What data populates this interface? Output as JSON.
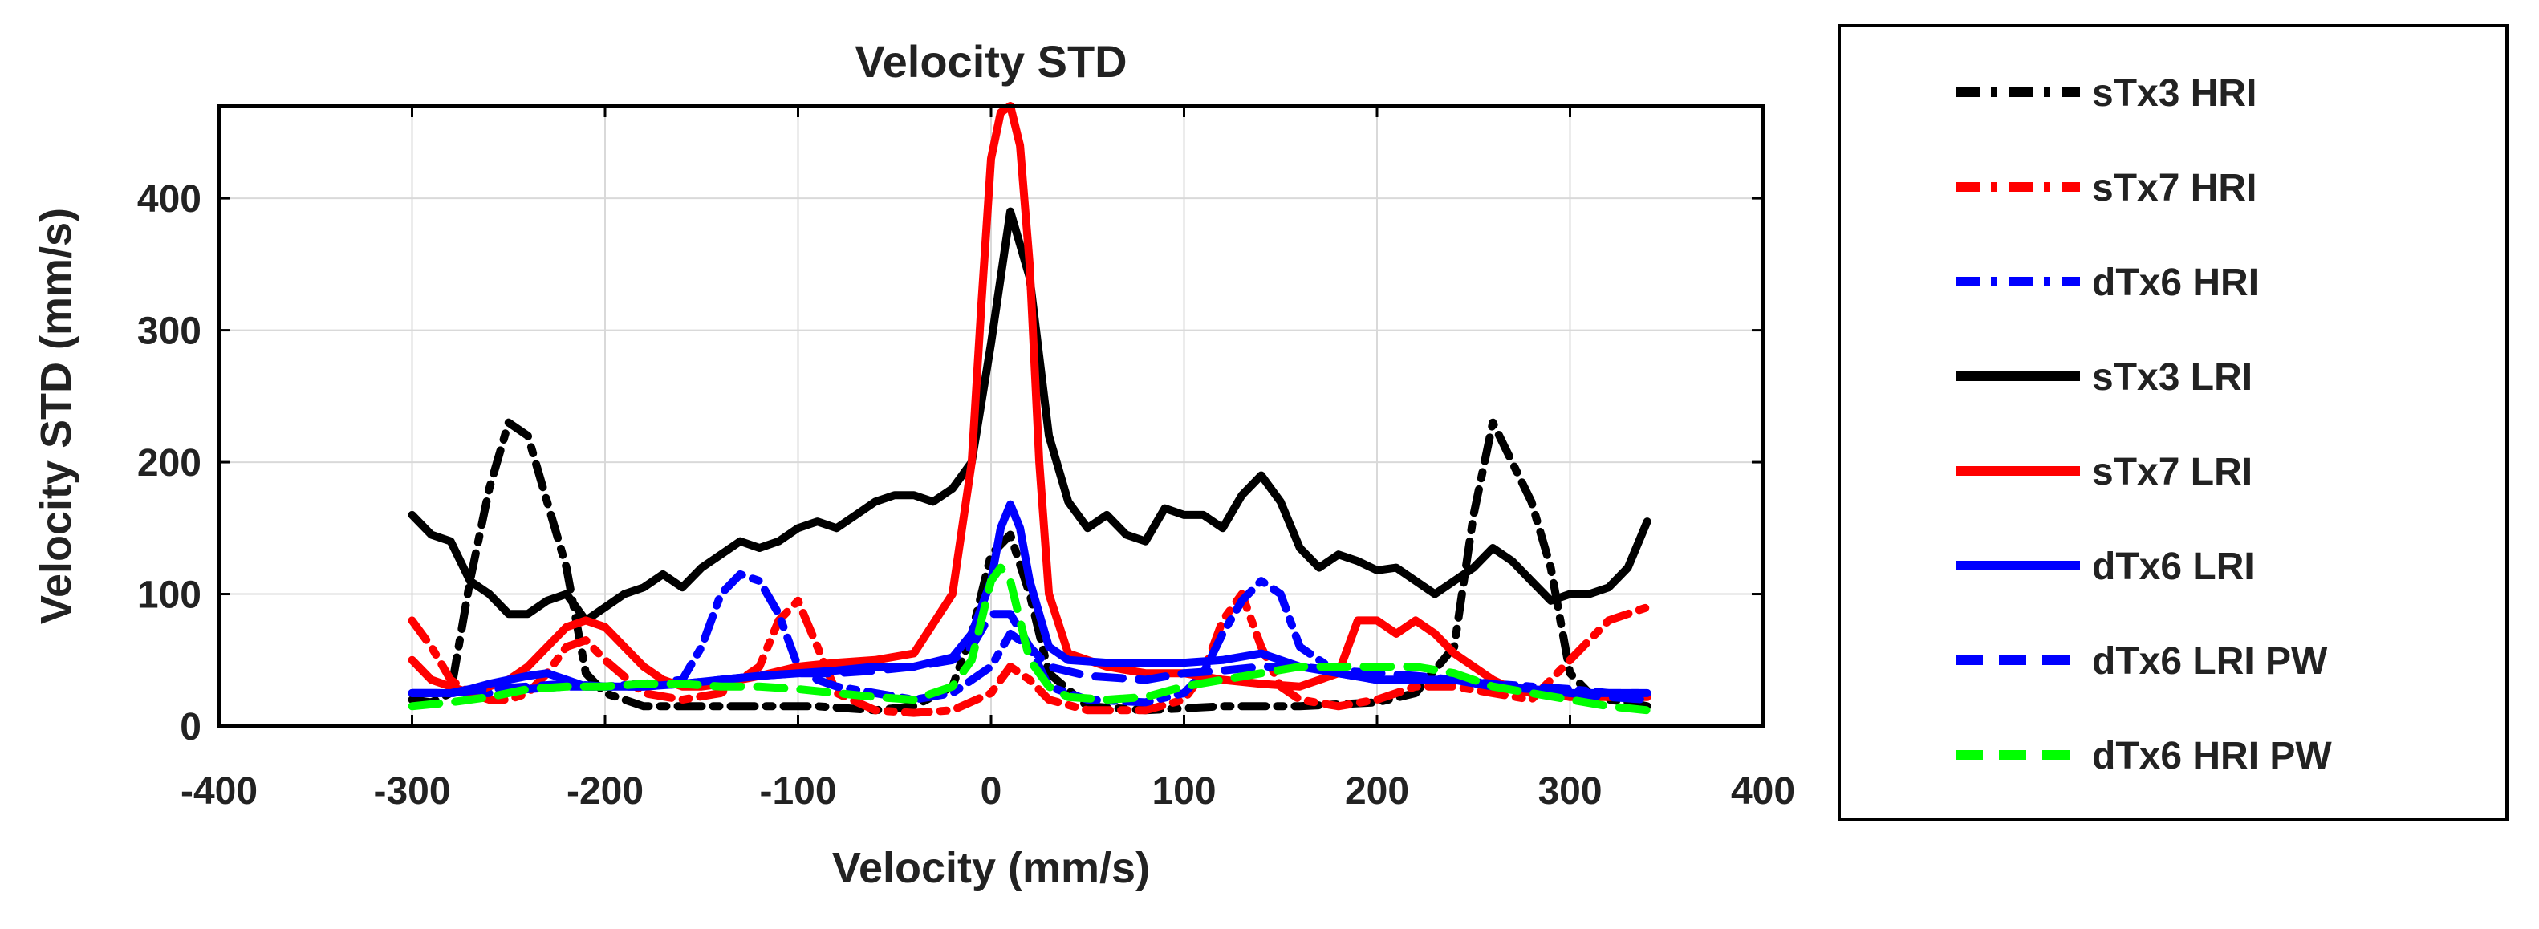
{
  "chart_data": {
    "type": "line",
    "title": "Velocity STD",
    "xlabel": "Velocity (mm/s)",
    "ylabel": "Velocity STD (mm/s)",
    "xlim": [
      -400,
      400
    ],
    "ylim": [
      0,
      470
    ],
    "xticks": [
      -400,
      -300,
      -200,
      -100,
      0,
      100,
      200,
      300,
      400
    ],
    "yticks": [
      0,
      100,
      200,
      300,
      400
    ],
    "grid": true,
    "legend_position": "outside-right",
    "series": [
      {
        "name": "sTx3 HRI",
        "color": "#000000",
        "style": "dashdot",
        "x": [
          -300,
          -290,
          -280,
          -270,
          -260,
          -250,
          -240,
          -230,
          -220,
          -210,
          -200,
          -180,
          -150,
          -120,
          -90,
          -60,
          -40,
          -20,
          -10,
          0,
          10,
          20,
          30,
          50,
          80,
          120,
          160,
          200,
          220,
          240,
          250,
          260,
          270,
          280,
          290,
          300,
          310,
          320,
          330,
          340
        ],
        "y": [
          20,
          18,
          25,
          110,
          180,
          230,
          220,
          170,
          120,
          40,
          25,
          15,
          15,
          15,
          15,
          12,
          15,
          30,
          70,
          130,
          145,
          100,
          40,
          15,
          12,
          15,
          15,
          18,
          25,
          60,
          160,
          230,
          200,
          170,
          120,
          40,
          25,
          20,
          18,
          15
        ]
      },
      {
        "name": "sTx7 HRI",
        "color": "#ff0000",
        "style": "dashdot",
        "x": [
          -300,
          -290,
          -280,
          -270,
          -260,
          -250,
          -240,
          -230,
          -220,
          -210,
          -200,
          -180,
          -160,
          -140,
          -120,
          -110,
          -100,
          -90,
          -80,
          -60,
          -40,
          -20,
          0,
          10,
          20,
          30,
          50,
          80,
          100,
          110,
          120,
          130,
          140,
          150,
          160,
          180,
          200,
          220,
          240,
          260,
          280,
          300,
          320,
          340
        ],
        "y": [
          80,
          60,
          35,
          25,
          20,
          20,
          25,
          40,
          60,
          65,
          50,
          25,
          20,
          25,
          45,
          80,
          95,
          60,
          25,
          12,
          10,
          12,
          25,
          45,
          35,
          20,
          12,
          12,
          20,
          40,
          80,
          100,
          60,
          30,
          20,
          15,
          20,
          30,
          30,
          25,
          20,
          50,
          80,
          90
        ]
      },
      {
        "name": "dTx6 HRI",
        "color": "#0000ff",
        "style": "dashdot",
        "x": [
          -300,
          -280,
          -260,
          -240,
          -220,
          -200,
          -180,
          -160,
          -150,
          -140,
          -130,
          -120,
          -110,
          -100,
          -90,
          -80,
          -60,
          -40,
          -20,
          0,
          10,
          20,
          30,
          50,
          80,
          100,
          110,
          120,
          130,
          140,
          150,
          160,
          180,
          200,
          220,
          240,
          260,
          280,
          300,
          320,
          340
        ],
        "y": [
          25,
          25,
          25,
          28,
          30,
          30,
          32,
          35,
          60,
          100,
          115,
          110,
          85,
          45,
          35,
          30,
          25,
          20,
          25,
          45,
          70,
          60,
          30,
          20,
          18,
          25,
          40,
          70,
          95,
          110,
          100,
          60,
          40,
          35,
          35,
          35,
          32,
          30,
          28,
          25,
          25
        ]
      },
      {
        "name": "sTx3 LRI",
        "color": "#000000",
        "style": "solid",
        "x": [
          -300,
          -290,
          -280,
          -270,
          -260,
          -250,
          -240,
          -230,
          -220,
          -210,
          -200,
          -190,
          -180,
          -170,
          -160,
          -150,
          -140,
          -130,
          -120,
          -110,
          -100,
          -90,
          -80,
          -70,
          -60,
          -50,
          -40,
          -30,
          -20,
          -10,
          0,
          10,
          20,
          30,
          40,
          50,
          60,
          70,
          80,
          90,
          100,
          110,
          120,
          130,
          140,
          150,
          160,
          170,
          180,
          190,
          200,
          210,
          220,
          230,
          240,
          250,
          260,
          270,
          280,
          290,
          300,
          310,
          320,
          330,
          340
        ],
        "y": [
          160,
          145,
          140,
          110,
          100,
          85,
          85,
          95,
          100,
          80,
          90,
          100,
          105,
          115,
          105,
          120,
          130,
          140,
          135,
          140,
          150,
          155,
          150,
          160,
          170,
          175,
          175,
          170,
          180,
          200,
          290,
          390,
          340,
          220,
          170,
          150,
          160,
          145,
          140,
          165,
          160,
          160,
          150,
          175,
          190,
          170,
          135,
          120,
          130,
          125,
          118,
          120,
          110,
          100,
          110,
          120,
          135,
          125,
          110,
          95,
          100,
          100,
          105,
          120,
          155
        ]
      },
      {
        "name": "sTx7 LRI",
        "color": "#ff0000",
        "style": "solid",
        "x": [
          -300,
          -290,
          -280,
          -270,
          -260,
          -250,
          -240,
          -230,
          -220,
          -210,
          -200,
          -190,
          -180,
          -170,
          -160,
          -150,
          -140,
          -130,
          -120,
          -100,
          -80,
          -60,
          -40,
          -20,
          -10,
          -5,
          0,
          5,
          10,
          15,
          20,
          25,
          30,
          40,
          60,
          80,
          100,
          120,
          140,
          160,
          180,
          190,
          200,
          210,
          220,
          230,
          240,
          250,
          260,
          270,
          280,
          290,
          300,
          320,
          340
        ],
        "y": [
          50,
          35,
          30,
          25,
          30,
          35,
          45,
          60,
          75,
          80,
          75,
          60,
          45,
          35,
          30,
          30,
          32,
          35,
          38,
          45,
          48,
          50,
          55,
          100,
          200,
          320,
          430,
          465,
          470,
          440,
          350,
          200,
          100,
          55,
          45,
          40,
          40,
          35,
          32,
          30,
          40,
          80,
          80,
          70,
          80,
          70,
          55,
          45,
          35,
          28,
          25,
          25,
          22,
          22,
          22
        ]
      },
      {
        "name": "dTx6 LRI",
        "color": "#0000ff",
        "style": "solid",
        "x": [
          -300,
          -290,
          -280,
          -270,
          -260,
          -250,
          -240,
          -230,
          -220,
          -210,
          -200,
          -180,
          -160,
          -140,
          -120,
          -100,
          -80,
          -60,
          -40,
          -20,
          -10,
          0,
          5,
          10,
          15,
          20,
          30,
          40,
          60,
          80,
          100,
          120,
          140,
          160,
          180,
          200,
          220,
          240,
          260,
          280,
          300,
          320,
          340
        ],
        "y": [
          25,
          25,
          25,
          28,
          32,
          35,
          38,
          40,
          35,
          30,
          30,
          30,
          32,
          35,
          38,
          40,
          42,
          45,
          45,
          52,
          70,
          110,
          150,
          168,
          150,
          110,
          60,
          50,
          48,
          48,
          48,
          50,
          55,
          45,
          40,
          35,
          35,
          35,
          30,
          28,
          25,
          25,
          25
        ]
      },
      {
        "name": "dTx6 LRI PW",
        "color": "#0000ff",
        "style": "dashed",
        "x": [
          -300,
          -280,
          -260,
          -240,
          -220,
          -200,
          -180,
          -160,
          -140,
          -120,
          -100,
          -80,
          -60,
          -40,
          -20,
          -10,
          0,
          10,
          20,
          30,
          50,
          80,
          100,
          120,
          140,
          160,
          180,
          200,
          220,
          240,
          260,
          280,
          300,
          320,
          340
        ],
        "y": [
          25,
          25,
          28,
          30,
          32,
          30,
          30,
          32,
          35,
          38,
          40,
          40,
          42,
          45,
          50,
          60,
          85,
          85,
          60,
          45,
          38,
          35,
          40,
          42,
          45,
          45,
          42,
          40,
          38,
          35,
          32,
          28,
          25,
          22,
          20
        ]
      },
      {
        "name": "dTx6 HRI PW",
        "color": "#00ff00",
        "style": "dashed",
        "x": [
          -300,
          -280,
          -260,
          -240,
          -220,
          -200,
          -180,
          -160,
          -140,
          -120,
          -100,
          -80,
          -60,
          -40,
          -20,
          -10,
          0,
          5,
          10,
          15,
          20,
          30,
          40,
          60,
          80,
          100,
          120,
          140,
          160,
          180,
          200,
          220,
          240,
          260,
          280,
          300,
          320,
          340
        ],
        "y": [
          15,
          18,
          22,
          28,
          30,
          30,
          32,
          32,
          30,
          30,
          28,
          25,
          22,
          20,
          30,
          50,
          110,
          120,
          110,
          80,
          50,
          30,
          22,
          20,
          22,
          30,
          35,
          40,
          45,
          45,
          45,
          45,
          40,
          30,
          25,
          20,
          15,
          12
        ]
      }
    ]
  }
}
